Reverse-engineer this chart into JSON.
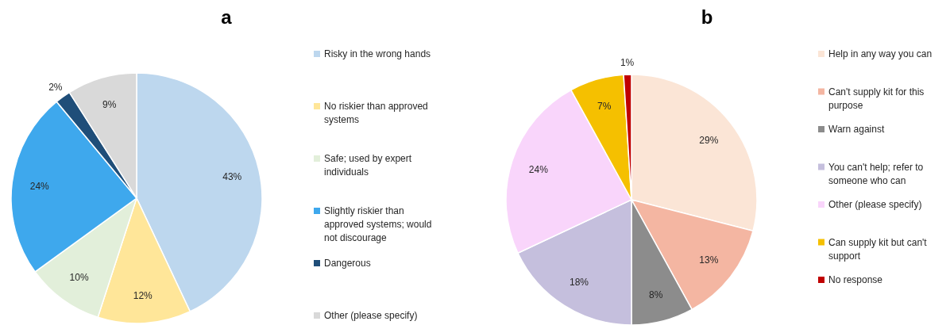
{
  "chart_data": [
    {
      "type": "pie",
      "title": "a",
      "categories": [
        "Risky in the wrong hands",
        "No riskier than approved systems",
        "Safe; used by expert individuals",
        "Slightly riskier than approved systems; would not discourage",
        "Dangerous",
        "Other (please specify)"
      ],
      "values": [
        43,
        12,
        10,
        24,
        2,
        9
      ],
      "value_labels": [
        "43%",
        "12%",
        "10%",
        "24%",
        "2%",
        "9%"
      ],
      "colors": [
        "#bdd7ee",
        "#ffe699",
        "#e2efda",
        "#3ea8ed",
        "#1f4e79",
        "#d9d9d9"
      ],
      "legend": "right"
    },
    {
      "type": "pie",
      "title": "b",
      "categories": [
        "Help in any way you can",
        "Can't supply kit for this purpose",
        "Warn against",
        "You can't help; refer to someone who can",
        "Other (please specify)",
        "Can supply kit but can't support",
        "No response"
      ],
      "values": [
        29,
        13,
        8,
        18,
        24,
        7,
        1
      ],
      "value_labels": [
        "29%",
        "13%",
        "8%",
        "18%",
        "24%",
        "7%",
        "1%"
      ],
      "colors": [
        "#fbe5d6",
        "#f4b6a2",
        "#8c8c8c",
        "#c5bfdd",
        "#f9d5fb",
        "#f5c000",
        "#c00000"
      ],
      "legend": "right"
    }
  ]
}
